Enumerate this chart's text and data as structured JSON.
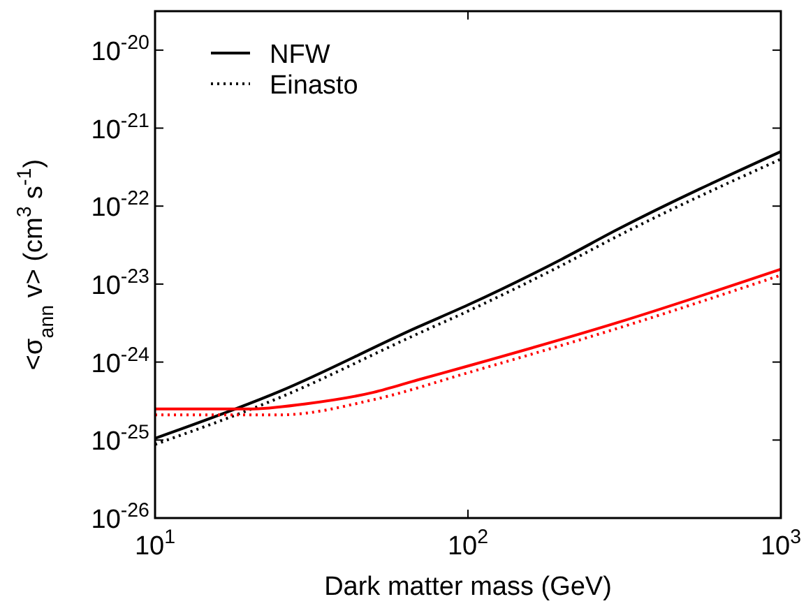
{
  "chart_data": {
    "type": "line",
    "xlabel": "Dark matter mass (GeV)",
    "ylabel": "<σ$_{ann}$ v> (cm$^{3}$ s$^{-1}$)",
    "log": "xy",
    "legend": "top left",
    "xlim": [
      10,
      1000
    ],
    "ylim": [
      1e-26,
      3.16e-20
    ],
    "xticks": [
      {
        "value": 10,
        "label": "10$^{1}$"
      },
      {
        "value": 100,
        "label": "10$^{2}$"
      },
      {
        "value": 1000,
        "label": "10$^{3}$"
      }
    ],
    "yticks": [
      {
        "value": 1e-26,
        "label": "10$^{-26}$"
      },
      {
        "value": 1e-25,
        "label": "10$^{-25}$"
      },
      {
        "value": 1e-24,
        "label": "10$^{-24}$"
      },
      {
        "value": 1e-23,
        "label": "10$^{-23}$"
      },
      {
        "value": 1e-22,
        "label": "10$^{-22}$"
      },
      {
        "value": 1e-21,
        "label": "10$^{-21}$"
      },
      {
        "value": 1e-20,
        "label": "10$^{-20}$"
      }
    ],
    "series": [
      {
        "name": "NFW",
        "color": "#000000",
        "line_style": "solid",
        "x": [
          10,
          25,
          69,
          100,
          200,
          300,
          1000
        ],
        "values": [
          1.05e-25,
          4.2e-25,
          2.8e-24,
          5.4e-24,
          2.1e-23,
          5e-23,
          5e-22
        ]
      },
      {
        "name": "Einasto",
        "color": "#000000",
        "line_style": "dotted",
        "x": [
          10,
          25,
          69,
          100,
          200,
          300,
          1000
        ],
        "values": [
          8.8e-26,
          3.5e-25,
          2.3e-24,
          4.5e-24,
          1.75e-23,
          4.1e-23,
          4e-22
        ]
      },
      {
        "color": "#ff0000",
        "line_style": "solid",
        "x": [
          10,
          20,
          30,
          50,
          69,
          100,
          300,
          1000
        ],
        "values": [
          2.5e-25,
          2.5e-25,
          2.9e-25,
          4.1e-25,
          5.9e-25,
          8.9e-25,
          3.2e-24,
          1.55e-23
        ]
      },
      {
        "color": "#ff0000",
        "line_style": "dotted",
        "x": [
          10,
          25,
          50,
          100,
          300,
          1000
        ],
        "values": [
          2.1e-25,
          2.1e-25,
          3.3e-25,
          7.3e-25,
          2.7e-24,
          1.3e-23
        ]
      }
    ]
  }
}
